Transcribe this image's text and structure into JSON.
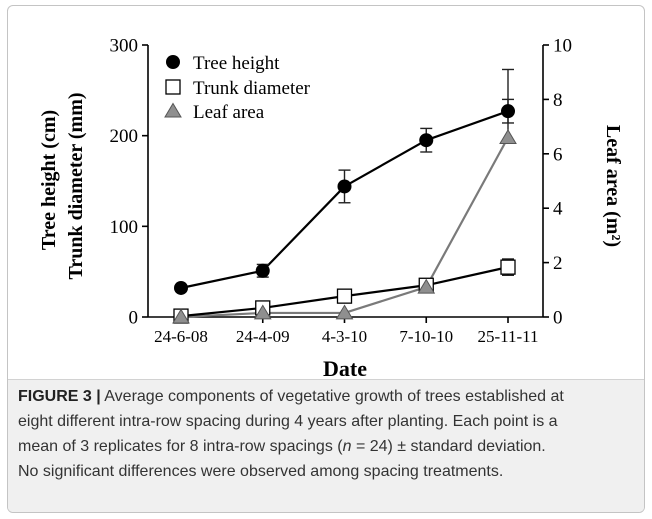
{
  "chart_data": {
    "type": "line",
    "categories": [
      "24-6-08",
      "24-4-09",
      "4-3-10",
      "7-10-10",
      "25-11-11"
    ],
    "xlabel": "Date",
    "ylabel_left": [
      "Tree height (cm)",
      "Trunk diameter (mm)"
    ],
    "ylabel_right": "Leaf area (m²)",
    "ylim_left": [
      0,
      300
    ],
    "ylim_right": [
      0,
      10
    ],
    "yticks_left": [
      0,
      100,
      200,
      300
    ],
    "yticks_right": [
      0,
      2,
      4,
      6,
      8,
      10
    ],
    "grid": false,
    "legend": "top-left",
    "series": [
      {
        "name": "Tree height",
        "axis": "left",
        "marker": "filled-circle",
        "color": "#000000",
        "values": [
          32,
          51,
          144,
          195,
          227
        ],
        "errors": [
          3,
          7,
          18,
          13,
          13
        ]
      },
      {
        "name": "Trunk diameter",
        "axis": "left",
        "marker": "open-square",
        "color": "#000000",
        "values": [
          1,
          10,
          23,
          35,
          55
        ],
        "errors": [
          1,
          2,
          2,
          3,
          9
        ]
      },
      {
        "name": "Leaf area",
        "axis": "right",
        "marker": "gray-triangle",
        "color": "#7a7a7a",
        "marker_fill": "#8f8f8f",
        "values": [
          0,
          0.15,
          0.15,
          1.1,
          6.6
        ],
        "errors_upper": [
          0,
          0,
          0,
          0,
          2.5
        ]
      }
    ]
  },
  "caption": {
    "label": "FIGURE 3 |",
    "line1": "Average components of vegetative growth of trees established at",
    "line2": "eight different intra-row spacing during 4 years after planting. Each point is a",
    "line3_a": "mean of 3 replicates for 8 intra-row spacings (",
    "line3_n": "n",
    "line3_b": " = 24) ± standard deviation.",
    "line4": "No significant differences were observed among spacing treatments."
  }
}
